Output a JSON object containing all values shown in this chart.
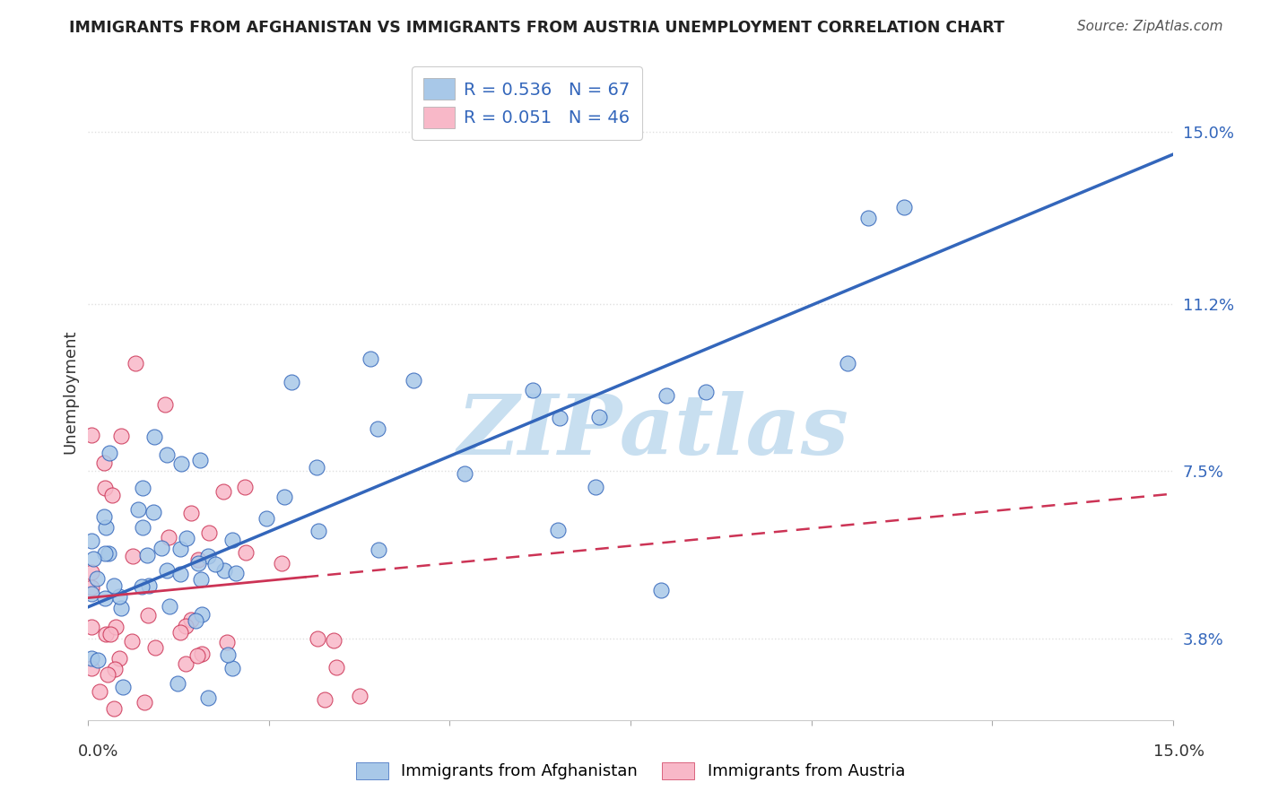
{
  "title": "IMMIGRANTS FROM AFGHANISTAN VS IMMIGRANTS FROM AUSTRIA UNEMPLOYMENT CORRELATION CHART",
  "source": "Source: ZipAtlas.com",
  "ylabel": "Unemployment",
  "y_ticks": [
    3.8,
    7.5,
    11.2,
    15.0
  ],
  "x_range": [
    0.0,
    15.0
  ],
  "y_range": [
    2.0,
    16.5
  ],
  "afghanistan_color": "#a8c8e8",
  "austria_color": "#f8b8c8",
  "afghanistan_line_color": "#3366bb",
  "austria_line_color": "#cc3355",
  "legend_R_afghanistan": "R = 0.536",
  "legend_N_afghanistan": "N = 67",
  "legend_R_austria": "R = 0.051",
  "legend_N_austria": "N = 46",
  "legend_text_color": "#000000",
  "legend_value_color": "#3366bb",
  "watermark": "ZIPatlas",
  "watermark_color": "#c8dff0",
  "background_color": "#ffffff",
  "grid_color": "#e0e0e0",
  "afgh_line_x0": 0.0,
  "afgh_line_y0": 4.5,
  "afgh_line_x1": 15.0,
  "afgh_line_y1": 14.5,
  "aust_line_x0": 0.0,
  "aust_line_y0": 4.7,
  "aust_line_x1": 15.0,
  "aust_line_y1": 7.0,
  "aust_solid_x_end": 3.0
}
